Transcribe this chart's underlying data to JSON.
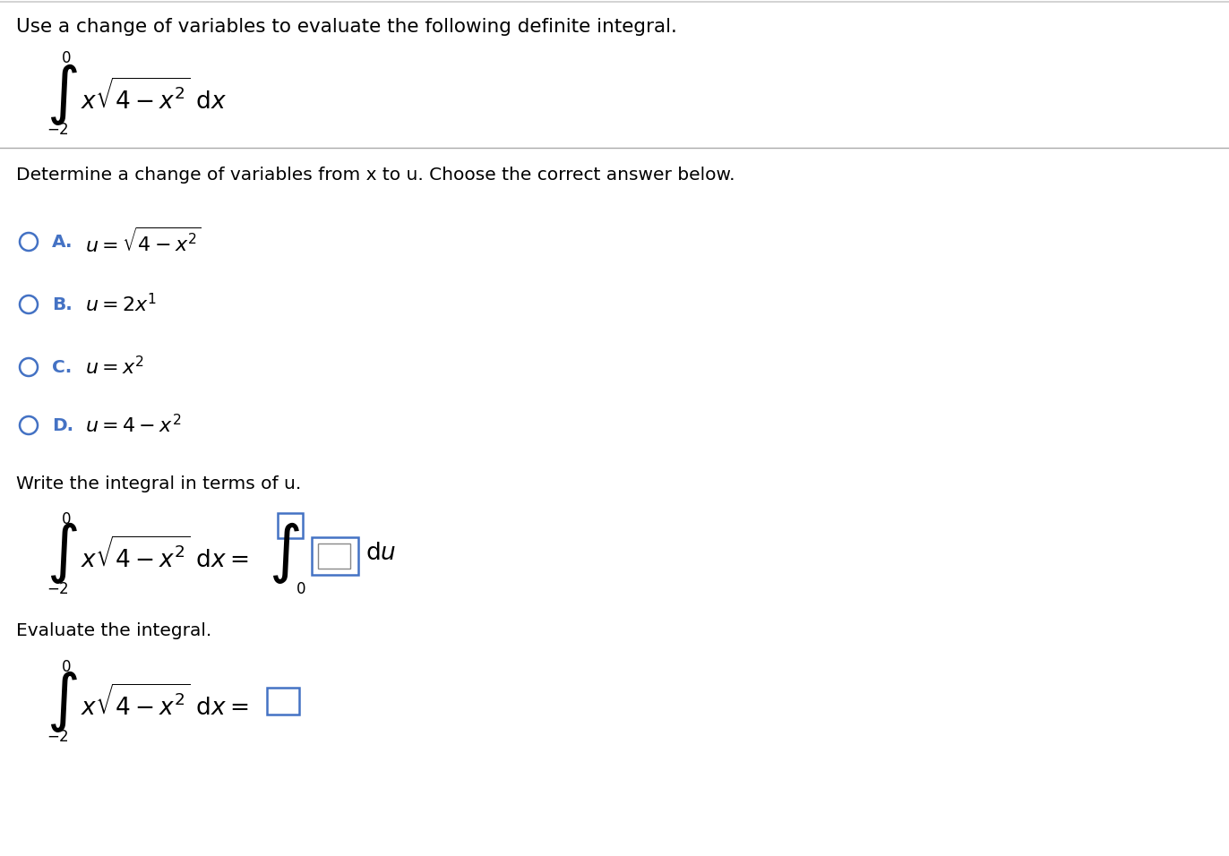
{
  "background_color": "#ffffff",
  "title": "Use a change of variables to evaluate the following definite integral.",
  "section1": "Determine a change of variables from x to u. Choose the correct answer below.",
  "write_label": "Write the integral in terms of u.",
  "evaluate_label": "Evaluate the integral.",
  "choice_letters": [
    "A.",
    "B.",
    "C.",
    "D."
  ],
  "choice_formulas": [
    "$u=\\sqrt{4-x^2}$",
    "$u=2x^1$",
    "$u=x^2$",
    "$u=4-x^2$"
  ],
  "text_color": "#000000",
  "blue_color": "#4472c4",
  "gray_line_color": "#aaaaaa",
  "font_size_title": 15.5,
  "font_size_body": 14.5,
  "font_size_formula": 16,
  "font_size_integral": 36,
  "font_size_limit": 12,
  "font_size_integrand": 19
}
